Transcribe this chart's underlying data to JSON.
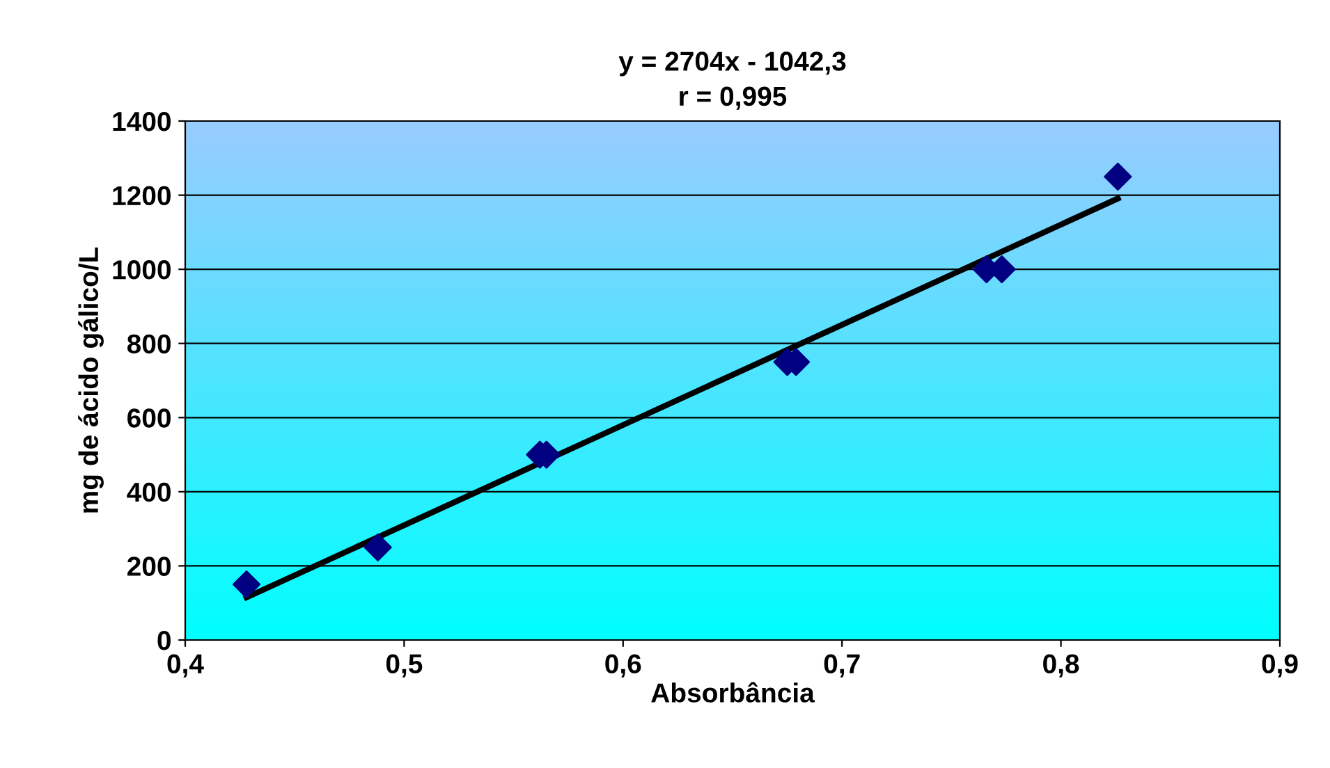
{
  "chart_data": {
    "type": "scatter",
    "title": "y = 2704x - 1042,3\nr = 0,995",
    "xlabel": "Absorbância",
    "ylabel": "mg de ácido gálico/L",
    "series": [
      {
        "color": "#000080",
        "marker": "diamond",
        "x": [
          0.428,
          0.488,
          0.562,
          0.565,
          0.675,
          0.679,
          0.766,
          0.773,
          0.826
        ],
        "values": [
          150,
          250,
          500,
          500,
          750,
          750,
          1000,
          1000,
          1250
        ]
      },
      {
        "type": "line",
        "color": "#000000",
        "marker": "none",
        "line_style": "solid",
        "x": [
          0.428,
          0.826
        ],
        "values": [
          115,
          1191
        ]
      }
    ],
    "xlim": [
      0.4,
      0.9
    ],
    "ylim": [
      0,
      1400
    ],
    "xticks": [
      {
        "value": 0.4,
        "label": "0,4"
      },
      {
        "value": 0.5,
        "label": "0,5"
      },
      {
        "value": 0.6,
        "label": "0,6"
      },
      {
        "value": 0.7,
        "label": "0,7"
      },
      {
        "value": 0.8,
        "label": "0,8"
      },
      {
        "value": 0.9,
        "label": "0,9"
      }
    ],
    "yticks": [
      0,
      200,
      400,
      600,
      800,
      1000,
      1200,
      1400
    ],
    "grid": "y",
    "legend": false
  }
}
